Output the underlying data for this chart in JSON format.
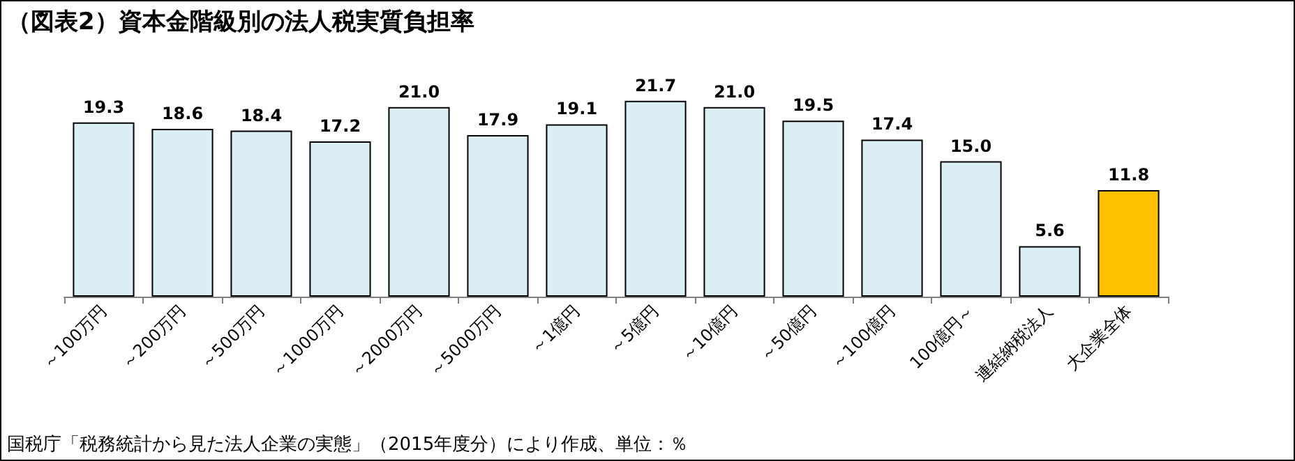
{
  "chart_data": {
    "type": "bar",
    "title": "（図表2）資本金階級別の法人税実質負担率",
    "categories": [
      "～100万円",
      "～200万円",
      "～500万円",
      "～1000万円",
      "～2000万円",
      "～5000万円",
      "～1億円",
      "～5億円",
      "～10億円",
      "～50億円",
      "～100億円",
      "100億円～",
      "連結納税法人",
      "大企業全体"
    ],
    "values": [
      19.3,
      18.6,
      18.4,
      17.2,
      21.0,
      17.9,
      19.1,
      21.7,
      21.0,
      19.5,
      17.4,
      15.0,
      5.6,
      11.8
    ],
    "value_labels": [
      "19.3",
      "18.6",
      "18.4",
      "17.2",
      "21.0",
      "17.9",
      "19.1",
      "21.7",
      "21.0",
      "19.5",
      "17.4",
      "15.0",
      "5.6",
      "11.8"
    ],
    "colors": [
      "#daeef3",
      "#daeef3",
      "#daeef3",
      "#daeef3",
      "#daeef3",
      "#daeef3",
      "#daeef3",
      "#daeef3",
      "#daeef3",
      "#daeef3",
      "#daeef3",
      "#daeef3",
      "#daeef3",
      "#ffc000"
    ],
    "annotations": [
      "国税庁「税務統計から見た法人企業の実態」（2015年度分）により作成、単位：％"
    ]
  }
}
